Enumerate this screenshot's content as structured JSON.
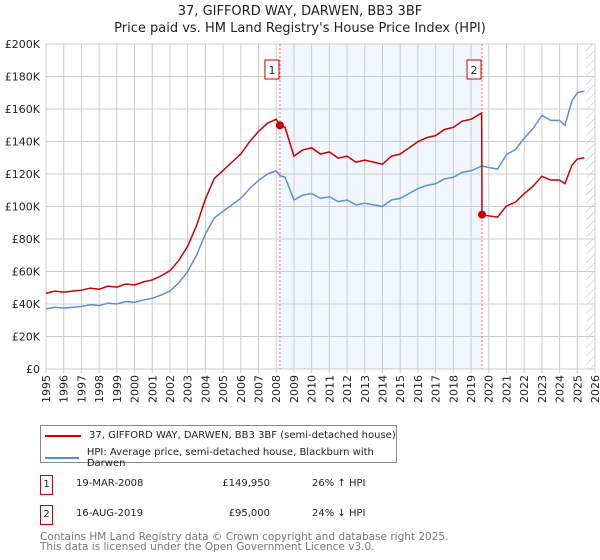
{
  "chart_data": {
    "type": "line",
    "title": "37, GIFFORD WAY, DARWEN, BB3 3BF",
    "subtitle": "Price paid vs. HM Land Registry's House Price Index (HPI)",
    "xlim": [
      1995,
      2026
    ],
    "ylim": [
      0,
      200000
    ],
    "x_ticks": [
      "1995",
      "1996",
      "1997",
      "1998",
      "1999",
      "2000",
      "2001",
      "2002",
      "2003",
      "2004",
      "2005",
      "2006",
      "2007",
      "2008",
      "2009",
      "2010",
      "2011",
      "2012",
      "2013",
      "2014",
      "2015",
      "2016",
      "2017",
      "2018",
      "2019",
      "2020",
      "2021",
      "2022",
      "2023",
      "2024",
      "2025",
      "2026"
    ],
    "y_ticks": [
      "£0",
      "£20K",
      "£40K",
      "£60K",
      "£80K",
      "£100K",
      "£120K",
      "£140K",
      "£160K",
      "£180K",
      "£200K"
    ],
    "grid": true,
    "shaded_region": [
      2008.21,
      2019.62
    ],
    "hatched_after": 2025.5,
    "series": [
      {
        "name": "37, GIFFORD WAY, DARWEN, BB3 3BF (semi-detached house)",
        "color": "#cc0000",
        "x": [
          1995,
          1995.5,
          1996,
          1996.5,
          1997,
          1997.5,
          1998,
          1998.5,
          1999,
          1999.5,
          2000,
          2000.5,
          2001,
          2001.5,
          2002,
          2002.5,
          2003,
          2003.5,
          2004,
          2004.5,
          2005,
          2005.5,
          2006,
          2006.5,
          2007,
          2007.5,
          2008,
          2008.21,
          2008.5,
          2009,
          2009.5,
          2010,
          2010.5,
          2011,
          2011.5,
          2012,
          2012.5,
          2013,
          2013.5,
          2014,
          2014.5,
          2015,
          2015.5,
          2016,
          2016.5,
          2017,
          2017.5,
          2018,
          2018.5,
          2019,
          2019.6,
          2019.62,
          2020,
          2020.5,
          2021,
          2021.5,
          2022,
          2022.5,
          2023,
          2023.5,
          2024,
          2024.3,
          2024.7,
          2025,
          2025.4
        ],
        "y": [
          46600,
          47900,
          47300,
          47900,
          48500,
          49800,
          49100,
          51000,
          50400,
          52300,
          51700,
          53600,
          54800,
          57300,
          60500,
          66800,
          75600,
          88200,
          104600,
          117200,
          122200,
          127300,
          132300,
          139900,
          146200,
          151200,
          153700,
          149950,
          148700,
          131000,
          134800,
          136100,
          132300,
          133600,
          129800,
          131000,
          127300,
          128500,
          127300,
          126000,
          131000,
          132300,
          136100,
          139900,
          142400,
          143600,
          147400,
          148700,
          152500,
          153700,
          157500,
          95000,
          94200,
          93500,
          100300,
          102600,
          107900,
          112500,
          118600,
          116300,
          116300,
          114000,
          125400,
          129200,
          130000
        ]
      },
      {
        "name": "HPI: Average price, semi-detached house, Blackburn with Darwen",
        "color": "#5b8fd4",
        "x": [
          1995,
          1995.5,
          1996,
          1996.5,
          1997,
          1997.5,
          1998,
          1998.5,
          1999,
          1999.5,
          2000,
          2000.5,
          2001,
          2001.5,
          2002,
          2002.5,
          2003,
          2003.5,
          2004,
          2004.5,
          2005,
          2005.5,
          2006,
          2006.5,
          2007,
          2007.5,
          2008,
          2008.21,
          2008.5,
          2009,
          2009.5,
          2010,
          2010.5,
          2011,
          2011.5,
          2012,
          2012.5,
          2013,
          2013.5,
          2014,
          2014.5,
          2015,
          2015.5,
          2016,
          2016.5,
          2017,
          2017.5,
          2018,
          2018.5,
          2019,
          2019.62,
          2020,
          2020.5,
          2021,
          2021.5,
          2022,
          2022.5,
          2023,
          2023.5,
          2024,
          2024.3,
          2024.7,
          2025,
          2025.4
        ],
        "y": [
          37000,
          38000,
          37500,
          38000,
          38500,
          39500,
          39000,
          40500,
          40000,
          41500,
          41000,
          42500,
          43500,
          45500,
          48000,
          53000,
          60000,
          70000,
          83000,
          93000,
          97000,
          101000,
          105000,
          111000,
          116000,
          120000,
          122000,
          119000,
          118000,
          104000,
          107000,
          108000,
          105000,
          106000,
          103000,
          104000,
          101000,
          102000,
          101000,
          100000,
          104000,
          105000,
          108000,
          111000,
          113000,
          114000,
          117000,
          118000,
          121000,
          122000,
          125000,
          124000,
          123000,
          132000,
          135000,
          142000,
          148000,
          156000,
          153000,
          153000,
          150000,
          165000,
          170000,
          171000
        ]
      }
    ],
    "annotations": [
      {
        "label": "1",
        "x": 2008.21,
        "y": 149950,
        "date": "19-MAR-2008",
        "price": "£149,950",
        "hpi": "26% ↑ HPI"
      },
      {
        "label": "2",
        "x": 2019.62,
        "y": 95000,
        "date": "16-AUG-2019",
        "price": "£95,000",
        "hpi": "24% ↓ HPI"
      }
    ]
  },
  "legend": {
    "red": "37, GIFFORD WAY, DARWEN, BB3 3BF (semi-detached house)",
    "blue": "HPI: Average price, semi-detached house, Blackburn with Darwen"
  },
  "footer": {
    "line1": "Contains HM Land Registry data © Crown copyright and database right 2025.",
    "line2": "This data is licensed under the Open Government Licence v3.0."
  }
}
